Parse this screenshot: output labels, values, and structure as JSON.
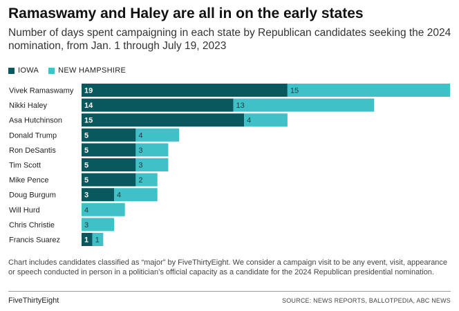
{
  "title": "Ramaswamy and Haley are all in on the early states",
  "subtitle": "Number of days spent campaigning in each state by Republican candidates seeking the 2024 nomination, from Jan. 1 through July 19, 2023",
  "colors": {
    "iowa": "#08585e",
    "new_hampshire": "#40c1c7",
    "iowa_label": "#ffffff",
    "nh_label": "#1a3a3c"
  },
  "chart_data": {
    "type": "bar",
    "orientation": "horizontal",
    "stacked": true,
    "categories": [
      "Vivek Ramaswamy",
      "Nikki Haley",
      "Asa Hutchinson",
      "Donald Trump",
      "Ron DeSantis",
      "Tim Scott",
      "Mike Pence",
      "Doug Burgum",
      "Will Hurd",
      "Chris Christie",
      "Francis Suarez"
    ],
    "series": [
      {
        "name": "IOWA",
        "values": [
          19,
          14,
          15,
          5,
          5,
          5,
          5,
          3,
          0,
          0,
          1
        ]
      },
      {
        "name": "NEW HAMPSHIRE",
        "values": [
          15,
          13,
          4,
          4,
          3,
          3,
          2,
          4,
          4,
          3,
          1
        ]
      }
    ],
    "xlim": [
      0,
      34
    ],
    "legend": "top-left",
    "grid": false
  },
  "footnote": "Chart includes candidates classified as “major” by FiveThirtyEight. We consider a campaign visit to be any event, visit, appearance or speech conducted in person in a politician’s official capacity as a candidate for the 2024 Republican presidential nomination.",
  "brand": "FiveThirtyEight",
  "source": "SOURCE: NEWS REPORTS, BALLOTPEDIA, ABC NEWS"
}
